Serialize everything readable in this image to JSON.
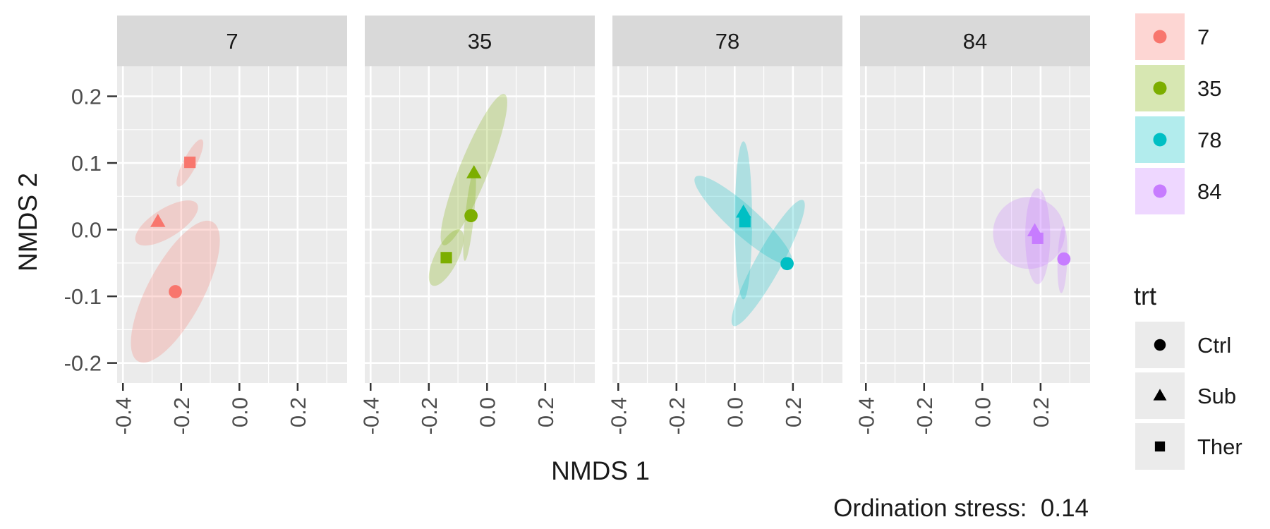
{
  "chart_data": {
    "type": "scatter",
    "xlabel": "NMDS 1",
    "ylabel": "NMDS 2",
    "caption": "Ordination stress:  0.14",
    "xlim": [
      -0.42,
      0.37
    ],
    "ylim": [
      -0.23,
      0.245
    ],
    "x_ticks": [
      -0.4,
      -0.2,
      0.0,
      0.2
    ],
    "x_tick_labels": [
      "-0.4",
      "-0.2",
      "0.0",
      "0.2"
    ],
    "y_ticks": [
      0.2,
      0.1,
      0.0,
      -0.1,
      -0.2
    ],
    "y_tick_labels": [
      "0.2",
      "0.1",
      "0.0",
      "-0.1",
      "-0.2"
    ],
    "grid": true,
    "legend_placement": "right",
    "color_legend": {
      "items": [
        {
          "label": "7",
          "color": "#F8766D"
        },
        {
          "label": "35",
          "color": "#7CAE00"
        },
        {
          "label": "78",
          "color": "#00BFC4"
        },
        {
          "label": "84",
          "color": "#C77CFF"
        }
      ]
    },
    "shape_legend": {
      "title": "trt",
      "items": [
        {
          "label": "Ctrl",
          "shape": "circle"
        },
        {
          "label": "Sub",
          "shape": "triangle"
        },
        {
          "label": "Ther",
          "shape": "square"
        }
      ]
    },
    "panels": [
      {
        "label": "7",
        "color": "#F8766D",
        "points": [
          {
            "trt": "Ctrl",
            "x": -0.22,
            "y": -0.093
          },
          {
            "trt": "Sub",
            "x": -0.28,
            "y": 0.012
          },
          {
            "trt": "Ther",
            "x": -0.17,
            "y": 0.101
          }
        ],
        "ellipses": [
          {
            "trt": "Ctrl",
            "cx": -0.22,
            "cy": -0.093,
            "rx": 0.165,
            "ry": 0.058,
            "angle": 62
          },
          {
            "trt": "Sub",
            "cx": -0.25,
            "cy": 0.01,
            "rx": 0.075,
            "ry": 0.03,
            "angle": 32
          },
          {
            "trt": "Ther",
            "cx": -0.17,
            "cy": 0.1,
            "rx": 0.055,
            "ry": 0.014,
            "angle": 63
          }
        ]
      },
      {
        "label": "35",
        "color": "#7CAE00",
        "points": [
          {
            "trt": "Ctrl",
            "x": -0.055,
            "y": 0.021
          },
          {
            "trt": "Sub",
            "x": -0.045,
            "y": 0.085
          },
          {
            "trt": "Ther",
            "x": -0.14,
            "y": -0.042
          }
        ],
        "ellipses": [
          {
            "trt": "Ctrl",
            "cx": -0.06,
            "cy": 0.021,
            "rx": 0.095,
            "ry": 0.009,
            "angle": 84
          },
          {
            "trt": "Sub",
            "cx": -0.045,
            "cy": 0.09,
            "rx": 0.17,
            "ry": 0.03,
            "angle": 68
          },
          {
            "trt": "Ther",
            "cx": -0.14,
            "cy": -0.042,
            "rx": 0.065,
            "ry": 0.024,
            "angle": 63
          }
        ]
      },
      {
        "label": "78",
        "color": "#00BFC4",
        "points": [
          {
            "trt": "Ctrl",
            "x": 0.18,
            "y": -0.051
          },
          {
            "trt": "Sub",
            "x": 0.03,
            "y": 0.026
          },
          {
            "trt": "Ther",
            "x": 0.035,
            "y": 0.012
          }
        ],
        "ellipses": [
          {
            "trt": "Ctrl",
            "cx": 0.115,
            "cy": -0.05,
            "rx": 0.15,
            "ry": 0.027,
            "angle": 61
          },
          {
            "trt": "Sub",
            "cx": 0.03,
            "cy": 0.014,
            "rx": 0.165,
            "ry": 0.018,
            "angle": 90
          },
          {
            "trt": "Ther",
            "cx": 0.03,
            "cy": 0.014,
            "rx": 0.135,
            "ry": 0.03,
            "angle": -42
          }
        ]
      },
      {
        "label": "84",
        "color": "#C77CFF",
        "points": [
          {
            "trt": "Ctrl",
            "x": 0.28,
            "y": -0.044
          },
          {
            "trt": "Sub",
            "x": 0.18,
            "y": -0.002
          },
          {
            "trt": "Ther",
            "x": 0.19,
            "y": -0.013
          }
        ],
        "ellipses": [
          {
            "trt": "Ctrl",
            "cx": 0.275,
            "cy": -0.045,
            "rx": 0.07,
            "ry": 0.01,
            "angle": 88
          },
          {
            "trt": "Sub",
            "cx": 0.19,
            "cy": -0.01,
            "rx": 0.1,
            "ry": 0.026,
            "angle": 90
          },
          {
            "trt": "Ther",
            "cx": 0.16,
            "cy": -0.005,
            "rx": 0.075,
            "ry": 0.075,
            "angle": 0
          }
        ]
      }
    ]
  }
}
